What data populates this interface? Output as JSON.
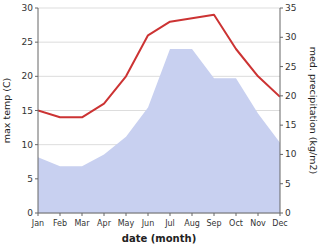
{
  "chart_data": {
    "type": "line",
    "categories": [
      "Jan",
      "Feb",
      "Mar",
      "Apr",
      "May",
      "Jun",
      "Jul",
      "Aug",
      "Sep",
      "Oct",
      "Nov",
      "Dec"
    ],
    "xlabel": "date (month)",
    "ylabel": "max temp (C)",
    "y2label": "med. precipitation (kg/m2)",
    "series": [
      {
        "type": "area",
        "axis": "y2",
        "color": "#c8d0f0",
        "values": [
          9.5,
          8.0,
          8.0,
          10.0,
          13.0,
          18.0,
          28.0,
          28.0,
          23.0,
          23.0,
          17.0,
          12.0
        ]
      },
      {
        "type": "line",
        "color": "#cc3333",
        "values": [
          15.0,
          14.0,
          14.0,
          16.0,
          20.0,
          26.0,
          28.0,
          28.5,
          29.0,
          24.0,
          20.0,
          17.0
        ]
      }
    ],
    "ylim": [
      0,
      30
    ],
    "yticks": [
      0,
      5,
      10,
      15,
      20,
      25,
      30
    ],
    "y2lim": [
      0,
      35
    ],
    "y2ticks": [
      0,
      5,
      10,
      15,
      20,
      25,
      30,
      35
    ],
    "grid": true
  }
}
